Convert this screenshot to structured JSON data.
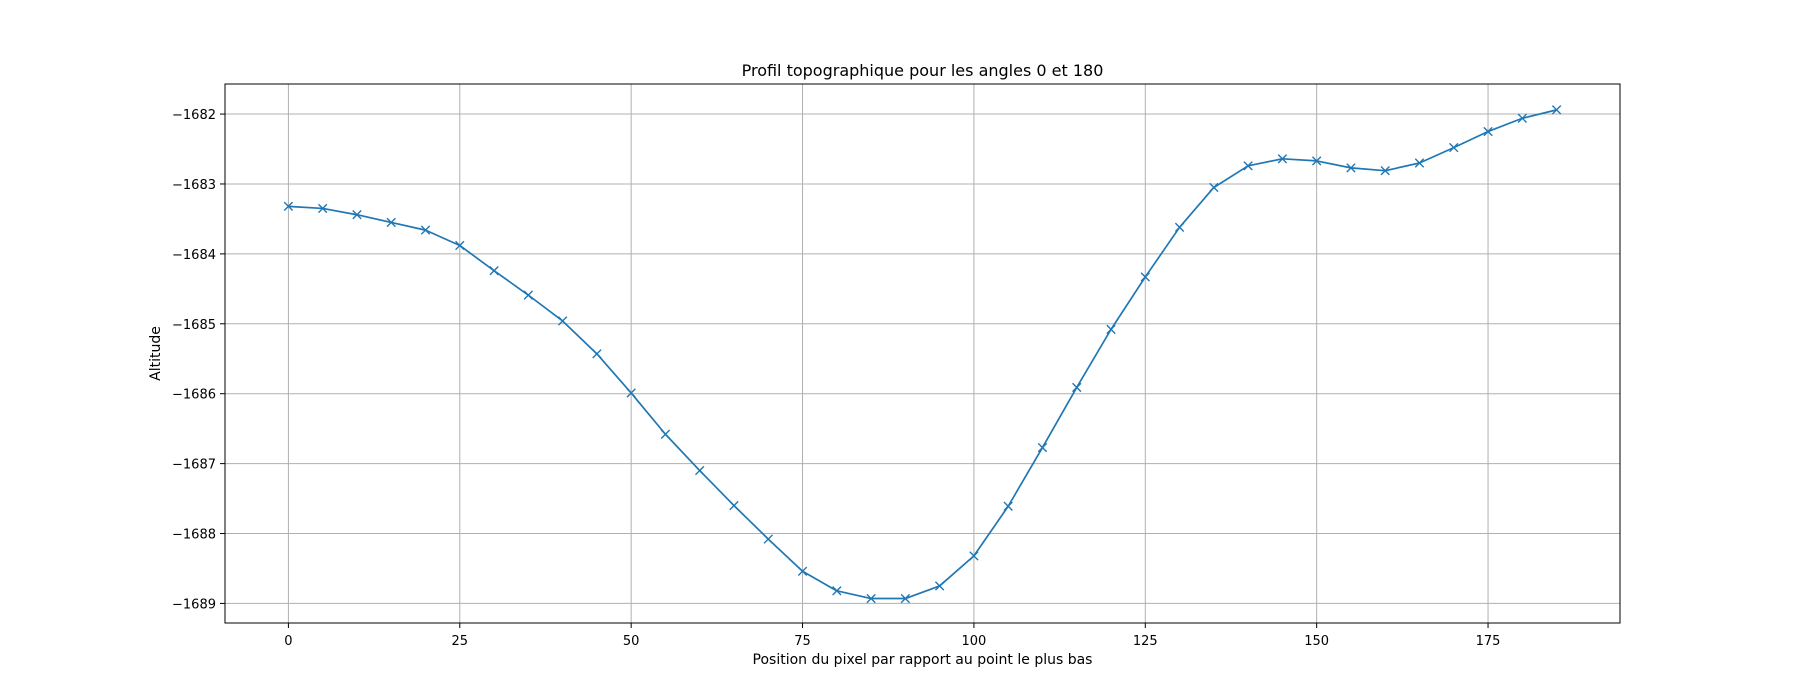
{
  "chart_data": {
    "type": "line",
    "title": "Profil topographique pour les angles 0 et 180",
    "xlabel": "Position du pixel par rapport au point le plus bas",
    "ylabel": "Altitude",
    "xlim": [
      -9.25,
      194.25
    ],
    "ylim": [
      -1689.28,
      -1681.57
    ],
    "xticks": [
      0,
      25,
      50,
      75,
      100,
      125,
      150,
      175
    ],
    "xtick_labels": [
      "0",
      "25",
      "50",
      "75",
      "100",
      "125",
      "150",
      "175"
    ],
    "yticks": [
      -1682,
      -1683,
      -1684,
      -1685,
      -1686,
      -1687,
      -1688,
      -1689
    ],
    "ytick_labels": [
      "−1682",
      "−1683",
      "−1684",
      "−1685",
      "−1686",
      "−1687",
      "−1688",
      "−1689"
    ],
    "grid": true,
    "series": [
      {
        "marker": "x",
        "color": "#1f77b4",
        "x": [
          0,
          5,
          10,
          15,
          20,
          25,
          30,
          35,
          40,
          45,
          50,
          55,
          60,
          65,
          70,
          75,
          80,
          85,
          90,
          95,
          100,
          105,
          110,
          115,
          120,
          125,
          130,
          135,
          140,
          145,
          150,
          155,
          160,
          165,
          170,
          175,
          180,
          185
        ],
        "y": [
          -1683.32,
          -1683.35,
          -1683.44,
          -1683.55,
          -1683.66,
          -1683.88,
          -1684.24,
          -1684.59,
          -1684.96,
          -1685.43,
          -1685.99,
          -1686.58,
          -1687.1,
          -1687.6,
          -1688.08,
          -1688.54,
          -1688.82,
          -1688.93,
          -1688.93,
          -1688.75,
          -1688.32,
          -1687.61,
          -1686.77,
          -1685.91,
          -1685.08,
          -1684.33,
          -1683.62,
          -1683.05,
          -1682.74,
          -1682.64,
          -1682.67,
          -1682.77,
          -1682.81,
          -1682.7,
          -1682.48,
          -1682.25,
          -1682.06,
          -1681.94
        ]
      }
    ]
  }
}
